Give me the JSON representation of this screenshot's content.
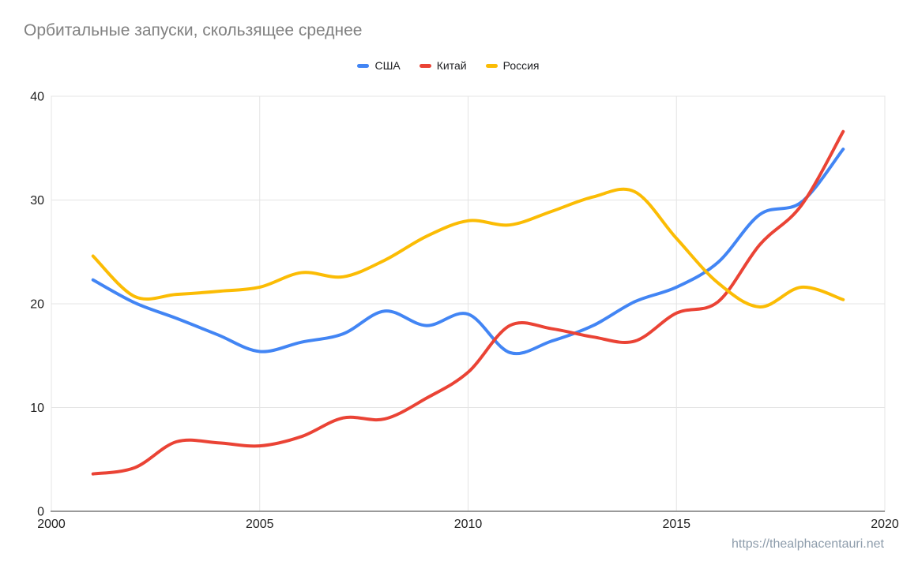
{
  "title": "Орбитальные запуски, скользящее среднее",
  "watermark": "https://thealphacentauri.net",
  "style": {
    "grid_color": "#e4e4e4",
    "axis_line_color": "#9a9a9a",
    "tick_label_color": "#212121",
    "title_color": "#818181",
    "watermark_color": "#8d9cab"
  },
  "chart_data": {
    "type": "line",
    "title": "Орбитальные запуски, скользящее среднее",
    "xlabel": "",
    "ylabel": "",
    "xlim": [
      2000,
      2020
    ],
    "ylim": [
      0,
      40
    ],
    "x_ticks": [
      2000,
      2005,
      2010,
      2015,
      2020
    ],
    "y_ticks": [
      0,
      10,
      20,
      30,
      40
    ],
    "grid": true,
    "smooth": true,
    "legend_position": "top-center",
    "x": [
      2001,
      2002,
      2003,
      2004,
      2005,
      2006,
      2007,
      2008,
      2009,
      2010,
      2011,
      2012,
      2013,
      2014,
      2015,
      2016,
      2017,
      2018,
      2019
    ],
    "series": [
      {
        "key": "usa",
        "name": "США",
        "color": "#4285F4",
        "values": [
          22.3,
          20.1,
          18.6,
          17.0,
          15.4,
          16.3,
          17.1,
          19.3,
          17.9,
          19.0,
          15.3,
          16.4,
          17.9,
          20.2,
          21.6,
          24.0,
          28.6,
          29.8,
          34.9
        ]
      },
      {
        "key": "china",
        "name": "Китай",
        "color": "#EA4335",
        "values": [
          3.6,
          4.2,
          6.7,
          6.6,
          6.3,
          7.2,
          9.0,
          8.9,
          10.9,
          13.4,
          17.9,
          17.6,
          16.8,
          16.4,
          19.1,
          20.2,
          25.7,
          29.5,
          36.6
        ]
      },
      {
        "key": "russia",
        "name": "Россия",
        "color": "#FBBC04",
        "values": [
          24.6,
          20.7,
          20.9,
          21.2,
          21.6,
          23.0,
          22.6,
          24.2,
          26.5,
          28.0,
          27.6,
          28.9,
          30.3,
          30.8,
          26.3,
          22.0,
          19.7,
          21.6,
          20.4
        ]
      }
    ]
  }
}
